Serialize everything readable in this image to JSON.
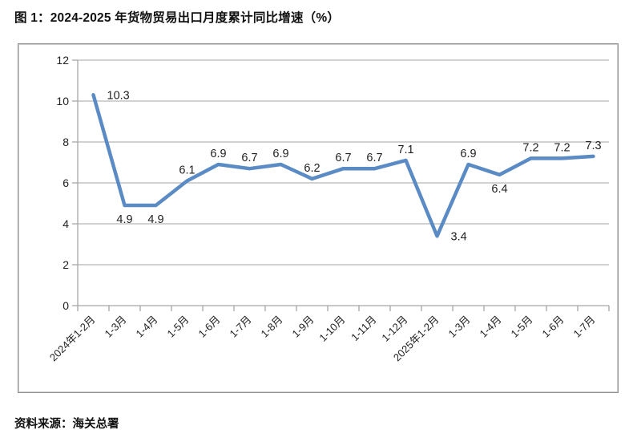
{
  "page": {
    "title": "图 1：2024-2025 年货物贸易出口月度累计同比增速（%）",
    "source_note": "资料来源：海关总署"
  },
  "chart_data": {
    "type": "line",
    "title": "2024-2025 年货物贸易出口月度累计同比增速（%）",
    "xlabel": "",
    "ylabel": "",
    "ylim": [
      0,
      12
    ],
    "ytick_step": 2,
    "yticks": [
      0,
      2,
      4,
      6,
      8,
      10,
      12
    ],
    "grid": true,
    "legend": "none",
    "categories": [
      "2024年1-2月",
      "1-3月",
      "1-4月",
      "1-5月",
      "1-6月",
      "1-7月",
      "1-8月",
      "1-9月",
      "1-10月",
      "1-11月",
      "1-12月",
      "2025年1-2月",
      "1-3月",
      "1-4月",
      "1-5月",
      "1-6月",
      "1-7月"
    ],
    "series": [
      {
        "name": "出口月度累计同比增速",
        "values": [
          10.3,
          4.9,
          4.9,
          6.1,
          6.9,
          6.7,
          6.9,
          6.2,
          6.7,
          6.7,
          7.1,
          3.4,
          6.9,
          6.4,
          7.2,
          7.2,
          7.3
        ]
      }
    ],
    "data_labels_visible": true,
    "label_placements": [
      "right",
      "below",
      "below",
      "above",
      "above",
      "above",
      "above",
      "above",
      "above",
      "above",
      "above",
      "right",
      "above",
      "below",
      "above",
      "above",
      "above"
    ],
    "colors": {
      "line": "#5B8BC5",
      "grid": "#a6a6a6",
      "axis": "#a6a6a6",
      "text": "#1f1f1f",
      "frame_border": "#8f8f8f",
      "background": "#ffffff"
    }
  }
}
